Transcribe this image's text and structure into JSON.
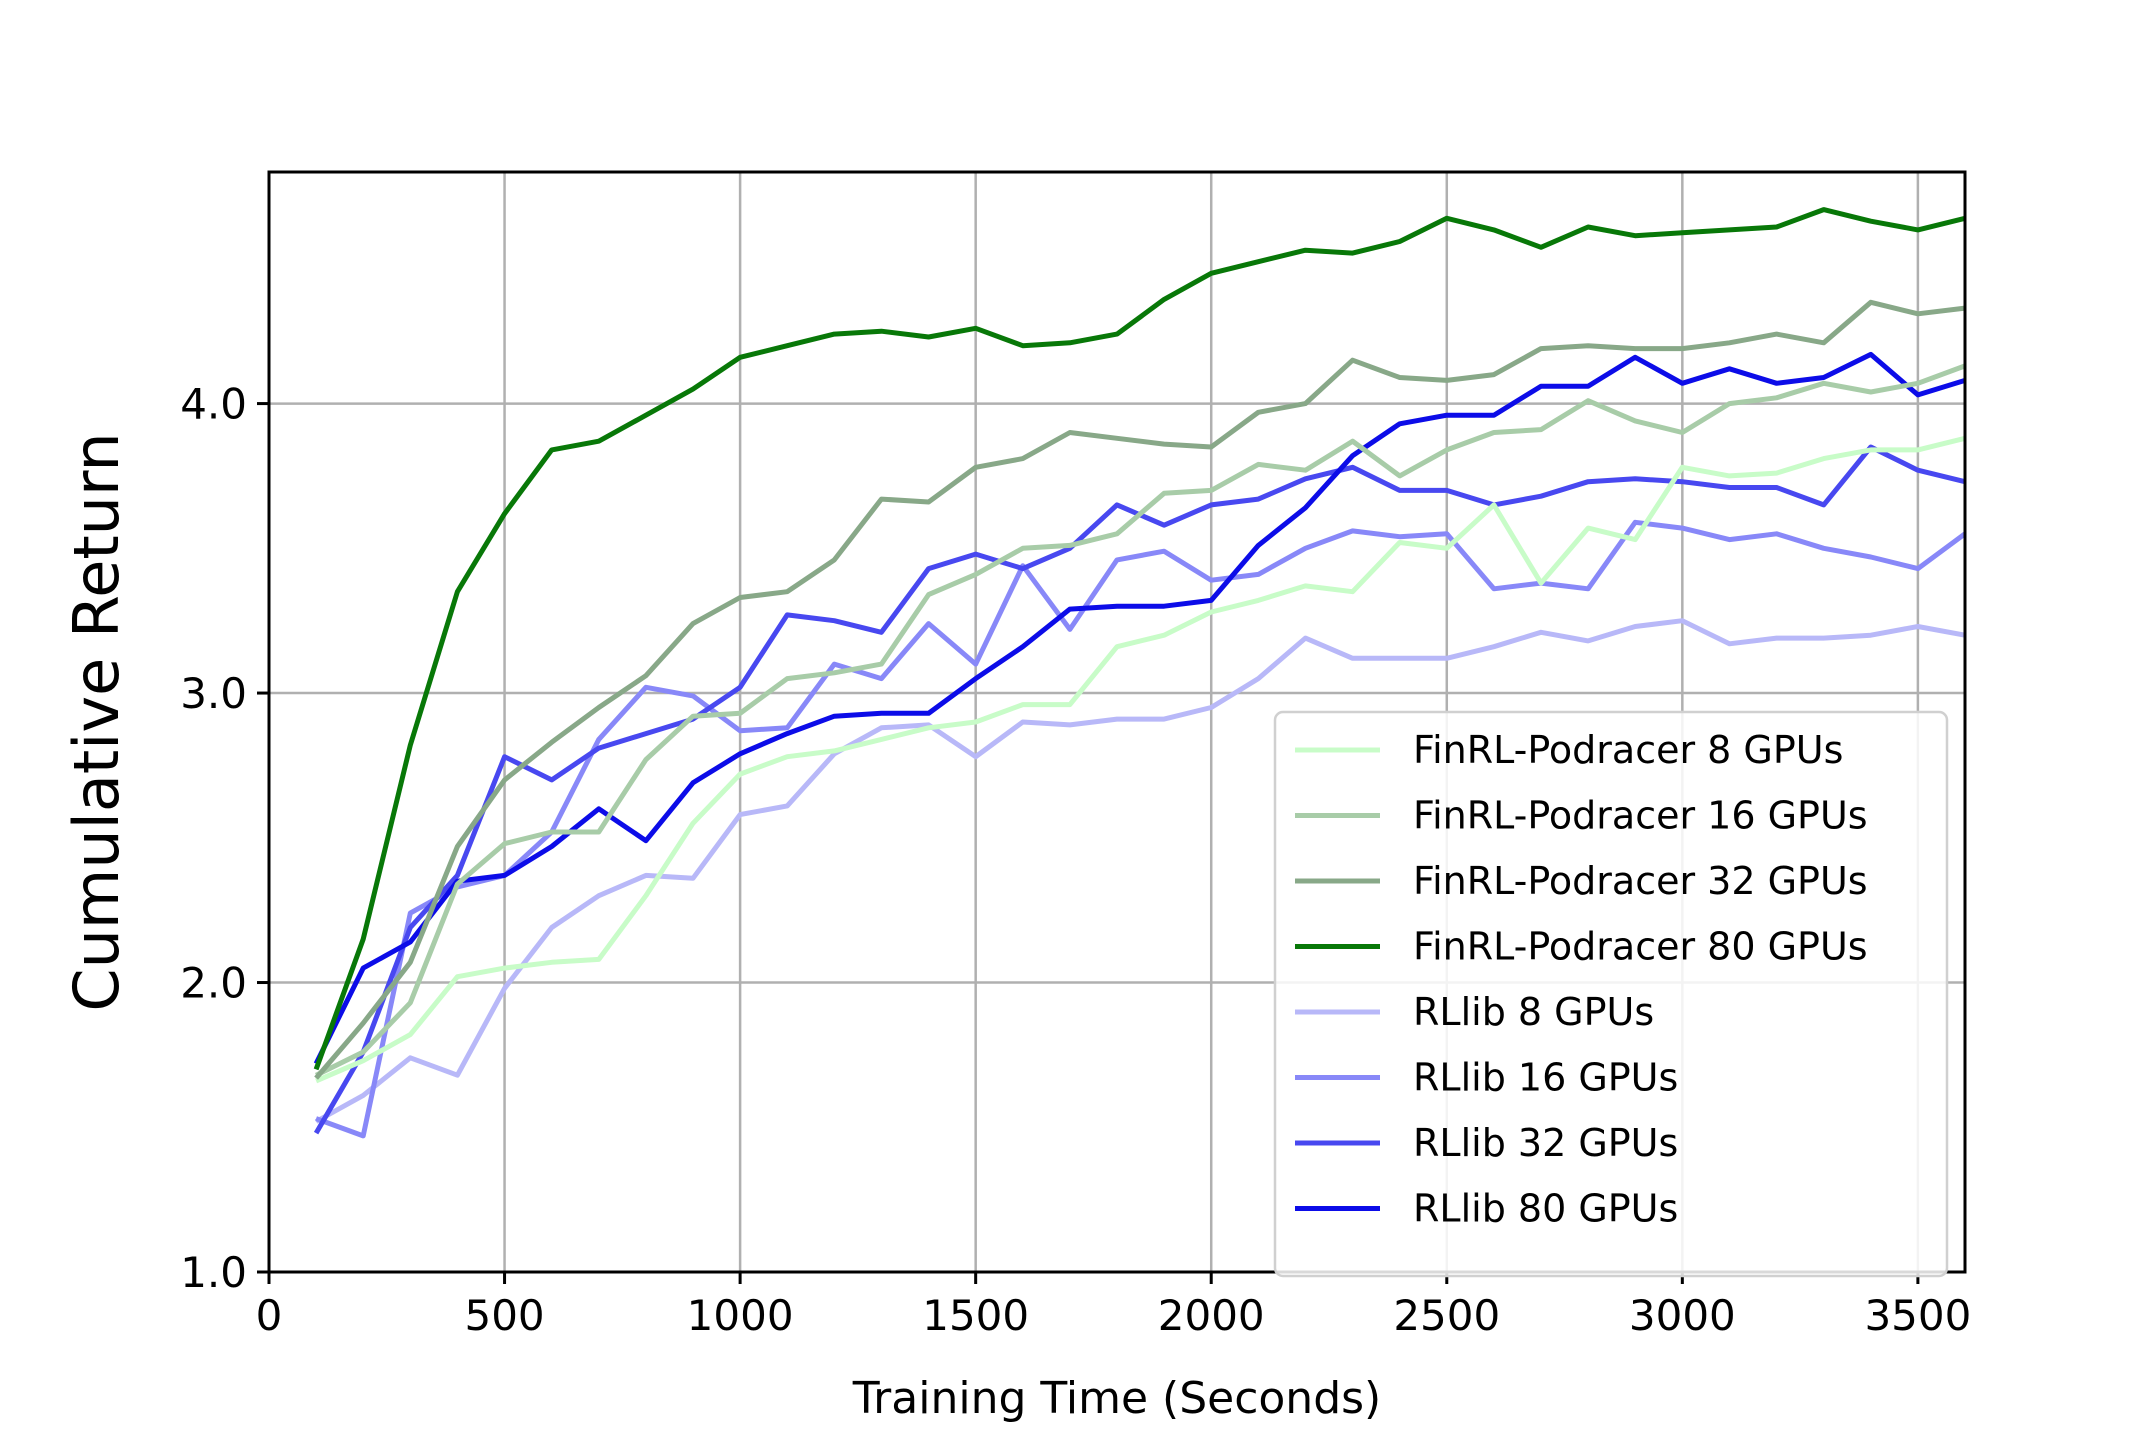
{
  "chart_data": {
    "type": "line",
    "title": "",
    "xlabel": "Training Time (Seconds)",
    "ylabel": "Cumulative Return",
    "xlim": [
      0,
      3600
    ],
    "ylim": [
      1.0,
      4.8
    ],
    "xticks": [
      0,
      500,
      1000,
      1500,
      2000,
      2500,
      3000,
      3500
    ],
    "yticks": [
      1.0,
      2.0,
      3.0,
      4.0
    ],
    "ytick_labels": [
      "1.0",
      "2.0",
      "3.0",
      "4.0"
    ],
    "grid": true,
    "legend_position": "lower-right",
    "x": [
      100,
      200,
      300,
      400,
      500,
      600,
      700,
      800,
      900,
      1000,
      1100,
      1200,
      1300,
      1400,
      1500,
      1600,
      1700,
      1800,
      1900,
      2000,
      2100,
      2200,
      2300,
      2400,
      2500,
      2600,
      2700,
      2800,
      2900,
      3000,
      3100,
      3200,
      3300,
      3400,
      3500,
      3600
    ],
    "series": [
      {
        "name": "FinRL-Podracer 8 GPUs",
        "color": "#c8fcc8",
        "values": [
          1.66,
          1.73,
          1.82,
          2.02,
          2.05,
          2.07,
          2.08,
          2.3,
          2.55,
          2.72,
          2.78,
          2.8,
          2.84,
          2.88,
          2.9,
          2.96,
          2.96,
          3.16,
          3.2,
          3.28,
          3.32,
          3.37,
          3.35,
          3.52,
          3.5,
          3.65,
          3.38,
          3.57,
          3.53,
          3.78,
          3.75,
          3.76,
          3.81,
          3.84,
          3.84,
          3.88
        ]
      },
      {
        "name": "FinRL-Podracer 16 GPUs",
        "color": "#a8cca8",
        "values": [
          1.68,
          1.76,
          1.93,
          2.34,
          2.48,
          2.52,
          2.52,
          2.77,
          2.92,
          2.93,
          3.05,
          3.07,
          3.1,
          3.34,
          3.41,
          3.5,
          3.51,
          3.55,
          3.69,
          3.7,
          3.79,
          3.77,
          3.87,
          3.75,
          3.84,
          3.9,
          3.91,
          4.01,
          3.94,
          3.9,
          4.0,
          4.02,
          4.07,
          4.04,
          4.07,
          4.13
        ]
      },
      {
        "name": "FinRL-Podracer 32 GPUs",
        "color": "#88a888",
        "values": [
          1.67,
          1.86,
          2.07,
          2.47,
          2.7,
          2.83,
          2.95,
          3.06,
          3.24,
          3.33,
          3.35,
          3.46,
          3.67,
          3.66,
          3.78,
          3.81,
          3.9,
          3.88,
          3.86,
          3.85,
          3.97,
          4.0,
          4.15,
          4.09,
          4.08,
          4.1,
          4.19,
          4.2,
          4.19,
          4.19,
          4.21,
          4.24,
          4.21,
          4.35,
          4.31,
          4.33
        ]
      },
      {
        "name": "FinRL-Podracer 80 GPUs",
        "color": "#087808",
        "values": [
          1.7,
          2.15,
          2.82,
          3.35,
          3.62,
          3.84,
          3.87,
          3.96,
          4.05,
          4.16,
          4.2,
          4.24,
          4.25,
          4.23,
          4.26,
          4.2,
          4.21,
          4.24,
          4.36,
          4.45,
          4.49,
          4.53,
          4.52,
          4.56,
          4.64,
          4.6,
          4.54,
          4.61,
          4.58,
          4.59,
          4.6,
          4.61,
          4.67,
          4.63,
          4.6,
          4.64
        ]
      },
      {
        "name": "RLlib 8 GPUs",
        "color": "#b8b8f8",
        "values": [
          1.52,
          1.61,
          1.74,
          1.68,
          1.98,
          2.19,
          2.3,
          2.37,
          2.36,
          2.58,
          2.61,
          2.79,
          2.88,
          2.89,
          2.78,
          2.9,
          2.89,
          2.91,
          2.91,
          2.95,
          3.05,
          3.19,
          3.12,
          3.12,
          3.12,
          3.16,
          3.21,
          3.18,
          3.23,
          3.25,
          3.17,
          3.19,
          3.19,
          3.2,
          3.23,
          3.2
        ]
      },
      {
        "name": "RLlib 16 GPUs",
        "color": "#8888f8",
        "values": [
          1.53,
          1.47,
          2.24,
          2.33,
          2.37,
          2.52,
          2.84,
          3.02,
          2.99,
          2.87,
          2.88,
          3.1,
          3.05,
          3.24,
          3.1,
          3.44,
          3.22,
          3.46,
          3.49,
          3.39,
          3.41,
          3.5,
          3.56,
          3.54,
          3.55,
          3.36,
          3.38,
          3.36,
          3.59,
          3.57,
          3.53,
          3.55,
          3.5,
          3.47,
          3.43,
          3.55
        ]
      },
      {
        "name": "RLlib 32 GPUs",
        "color": "#4848f0",
        "values": [
          1.48,
          1.76,
          2.19,
          2.37,
          2.78,
          2.7,
          2.81,
          2.86,
          2.91,
          3.02,
          3.27,
          3.25,
          3.21,
          3.43,
          3.48,
          3.43,
          3.5,
          3.65,
          3.58,
          3.65,
          3.67,
          3.74,
          3.78,
          3.7,
          3.7,
          3.65,
          3.68,
          3.73,
          3.74,
          3.73,
          3.71,
          3.71,
          3.65,
          3.85,
          3.77,
          3.73
        ]
      },
      {
        "name": "RLlib 80 GPUs",
        "color": "#0c0ce8",
        "values": [
          1.72,
          2.05,
          2.14,
          2.35,
          2.37,
          2.47,
          2.6,
          2.49,
          2.69,
          2.79,
          2.86,
          2.92,
          2.93,
          2.93,
          3.05,
          3.16,
          3.29,
          3.3,
          3.3,
          3.32,
          3.51,
          3.64,
          3.82,
          3.93,
          3.96,
          3.96,
          4.06,
          4.06,
          4.16,
          4.07,
          4.12,
          4.07,
          4.09,
          4.17,
          4.03,
          4.08
        ]
      }
    ]
  }
}
